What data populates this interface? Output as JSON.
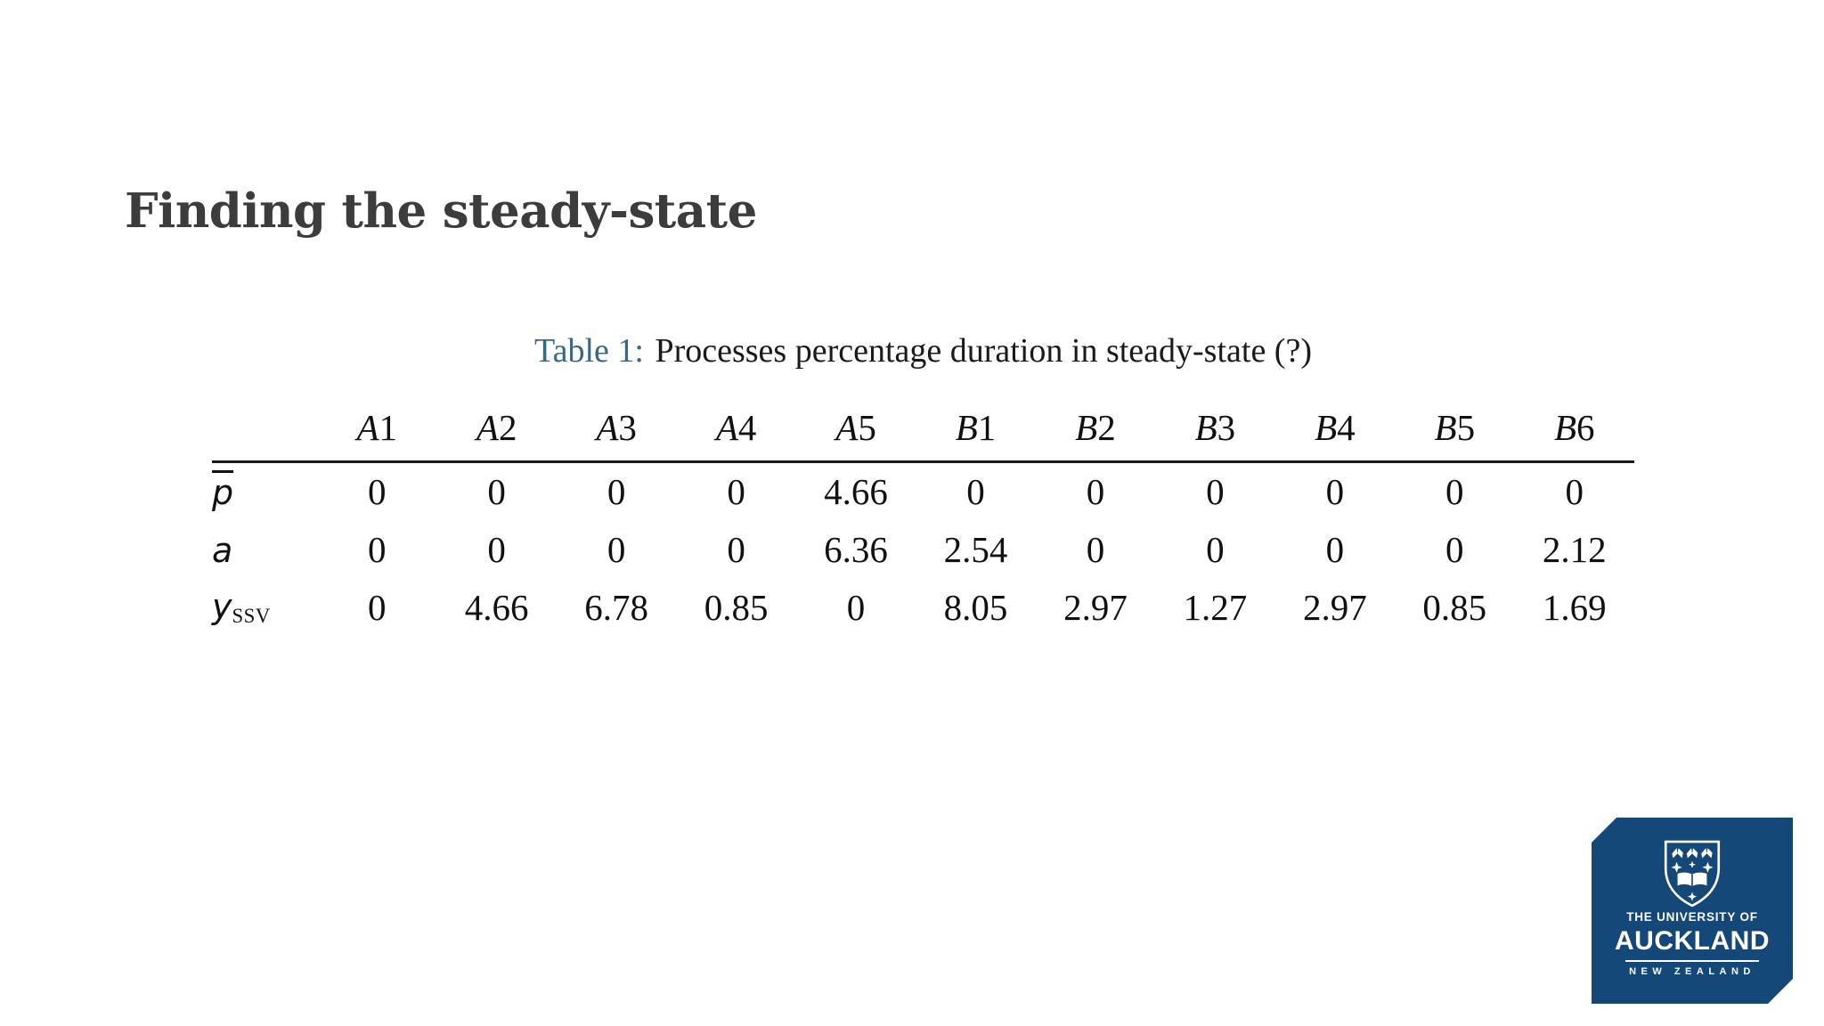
{
  "slide": {
    "title": "Finding the steady-state",
    "caption": {
      "label": "Table 1:",
      "text": "Processes percentage duration in steady-state (?)"
    },
    "table": {
      "columns": [
        {
          "letter": "A",
          "number": "1"
        },
        {
          "letter": "A",
          "number": "2"
        },
        {
          "letter": "A",
          "number": "3"
        },
        {
          "letter": "A",
          "number": "4"
        },
        {
          "letter": "A",
          "number": "5"
        },
        {
          "letter": "B",
          "number": "1"
        },
        {
          "letter": "B",
          "number": "2"
        },
        {
          "letter": "B",
          "number": "3"
        },
        {
          "letter": "B",
          "number": "4"
        },
        {
          "letter": "B",
          "number": "5"
        },
        {
          "letter": "B",
          "number": "6"
        }
      ],
      "rows": [
        {
          "label": {
            "base": "p",
            "overline": true,
            "subscript": null
          },
          "values": [
            "0",
            "0",
            "0",
            "0",
            "4.66",
            "0",
            "0",
            "0",
            "0",
            "0",
            "0"
          ]
        },
        {
          "label": {
            "base": "a",
            "overline": false,
            "subscript": null
          },
          "values": [
            "0",
            "0",
            "0",
            "0",
            "6.36",
            "2.54",
            "0",
            "0",
            "0",
            "0",
            "2.12"
          ]
        },
        {
          "label": {
            "base": "y",
            "overline": false,
            "subscript": "SSV"
          },
          "values": [
            "0",
            "4.66",
            "6.78",
            "0.85",
            "0",
            "8.05",
            "2.97",
            "1.27",
            "2.97",
            "0.85",
            "1.69"
          ]
        }
      ]
    },
    "logo": {
      "crest_icon": "university-of-auckland-crest",
      "line1": "THE UNIVERSITY OF",
      "line2": "AUCKLAND",
      "line3": "NEW ZEALAND",
      "bg_color": "#134879"
    },
    "colors": {
      "title": "#3c3c3c",
      "caption_label": "#366a84",
      "text": "#1a1a1a",
      "logo_blue": "#134879"
    }
  }
}
